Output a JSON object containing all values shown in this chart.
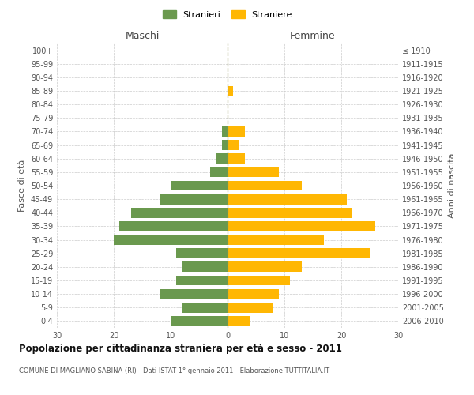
{
  "age_groups": [
    "0-4",
    "5-9",
    "10-14",
    "15-19",
    "20-24",
    "25-29",
    "30-34",
    "35-39",
    "40-44",
    "45-49",
    "50-54",
    "55-59",
    "60-64",
    "65-69",
    "70-74",
    "75-79",
    "80-84",
    "85-89",
    "90-94",
    "95-99",
    "100+"
  ],
  "birth_years": [
    "2006-2010",
    "2001-2005",
    "1996-2000",
    "1991-1995",
    "1986-1990",
    "1981-1985",
    "1976-1980",
    "1971-1975",
    "1966-1970",
    "1961-1965",
    "1956-1960",
    "1951-1955",
    "1946-1950",
    "1941-1945",
    "1936-1940",
    "1931-1935",
    "1926-1930",
    "1921-1925",
    "1916-1920",
    "1911-1915",
    "≤ 1910"
  ],
  "maschi": [
    10,
    8,
    12,
    9,
    8,
    9,
    20,
    19,
    17,
    12,
    10,
    3,
    2,
    1,
    1,
    0,
    0,
    0,
    0,
    0,
    0
  ],
  "femmine": [
    4,
    8,
    9,
    11,
    13,
    25,
    17,
    26,
    22,
    21,
    13,
    9,
    3,
    2,
    3,
    0,
    0,
    1,
    0,
    0,
    0
  ],
  "male_color": "#6a994e",
  "female_color": "#ffb703",
  "title": "Popolazione per cittadinanza straniera per età e sesso - 2011",
  "subtitle": "COMUNE DI MAGLIANO SABINA (RI) - Dati ISTAT 1° gennaio 2011 - Elaborazione TUTTITALIA.IT",
  "ylabel_left": "Fasce di età",
  "ylabel_right": "Anni di nascita",
  "xlabel_maschi": "Maschi",
  "xlabel_femmine": "Femmine",
  "legend_male": "Stranieri",
  "legend_female": "Straniere",
  "xlim": 30,
  "background_color": "#ffffff",
  "grid_color": "#cccccc"
}
